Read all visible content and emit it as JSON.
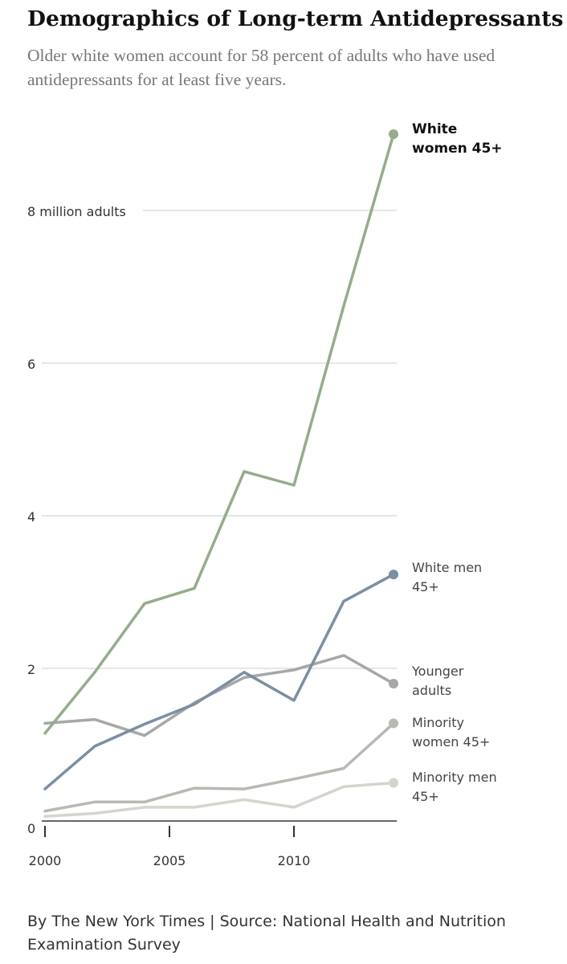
{
  "chart_data": {
    "type": "line",
    "title": "Demographics of Long-term Antidepressants",
    "subtitle": "Older white women account for 58 percent of adults who have used antidepressants for at least five years.",
    "x": [
      2000,
      2002,
      2004,
      2006,
      2008,
      2010,
      2012,
      2014
    ],
    "xlim": [
      2000,
      2014
    ],
    "ylim": [
      0,
      9
    ],
    "x_ticks": [
      {
        "value": 2000,
        "label": "2000"
      },
      {
        "value": 2005,
        "label": "2005"
      },
      {
        "value": 2010,
        "label": "2010"
      }
    ],
    "y_ticks": [
      {
        "value": 0,
        "label": "0"
      },
      {
        "value": 2,
        "label": "2"
      },
      {
        "value": 4,
        "label": "4"
      },
      {
        "value": 6,
        "label": "6"
      },
      {
        "value": 8,
        "label": "8  million adults"
      }
    ],
    "grid": true,
    "series": [
      {
        "name": "White women 45+",
        "label_lines": [
          "White",
          "women 45+"
        ],
        "color": "#94ad8a",
        "bold": true,
        "values": [
          1.15,
          1.95,
          2.85,
          3.05,
          4.58,
          4.4,
          6.75,
          9.0
        ]
      },
      {
        "name": "White men 45+",
        "label_lines": [
          "White men",
          "45+"
        ],
        "color": "#7c8ea3",
        "bold": false,
        "values": [
          0.42,
          0.98,
          1.27,
          1.53,
          1.95,
          1.58,
          2.88,
          3.23
        ]
      },
      {
        "name": "Younger adults",
        "label_lines": [
          "Younger",
          "adults"
        ],
        "color": "#a7a6a9",
        "bold": false,
        "values": [
          1.28,
          1.33,
          1.12,
          1.55,
          1.88,
          1.98,
          2.17,
          1.8
        ]
      },
      {
        "name": "Minority women 45+",
        "label_lines": [
          "Minority",
          "women 45+"
        ],
        "color": "#b8b9b1",
        "bold": false,
        "values": [
          0.13,
          0.25,
          0.25,
          0.43,
          0.42,
          0.55,
          0.69,
          1.28
        ]
      },
      {
        "name": "Minority men 45+",
        "label_lines": [
          "Minority men",
          "45+"
        ],
        "color": "#d4d6cc",
        "bold": false,
        "values": [
          0.06,
          0.1,
          0.18,
          0.18,
          0.28,
          0.18,
          0.45,
          0.5
        ]
      }
    ]
  },
  "footer": "By The New York Times | Source: National Health and Nutrition Examination Survey",
  "colors": {
    "grid": "#dddddd",
    "axis": "#333333",
    "tick_label": "#333333"
  }
}
